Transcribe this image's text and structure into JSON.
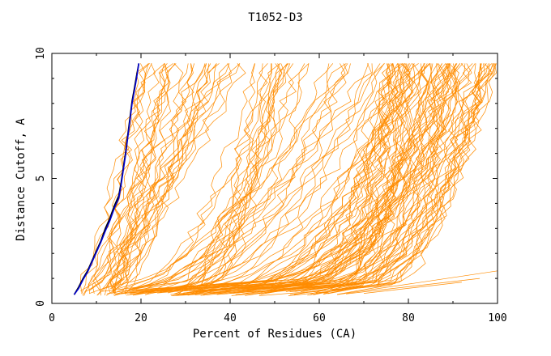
{
  "chart_data": {
    "type": "line",
    "title": "T1052-D3",
    "xlabel": "Percent of Residues (CA)",
    "ylabel": "Distance Cutoff, A",
    "xlim": [
      0,
      100
    ],
    "ylim": [
      0,
      10
    ],
    "x_ticks": [
      "0",
      "20",
      "40",
      "60",
      "80",
      "100"
    ],
    "y_ticks": [
      "0",
      "5",
      "10"
    ],
    "grid": false,
    "colors": {
      "models": "#ff8c00",
      "reference_black": "#000000",
      "reference_blue": "#0000cd"
    },
    "reference_series": [
      {
        "color": "black",
        "x": [
          5,
          6,
          7,
          8,
          9,
          10,
          11,
          12,
          13,
          14,
          15,
          15.5,
          16,
          16.5,
          17,
          17.5,
          18,
          18.5,
          19,
          19.5
        ],
        "y": [
          0.35,
          0.65,
          1.0,
          1.3,
          1.7,
          2.1,
          2.5,
          3.0,
          3.4,
          3.9,
          4.3,
          4.8,
          5.4,
          6.0,
          6.7,
          7.4,
          8.1,
          8.6,
          9.1,
          9.6
        ]
      },
      {
        "color": "blue",
        "x": [
          5,
          6,
          7,
          8,
          9,
          10,
          11,
          12,
          13,
          14,
          15,
          15.5,
          16,
          16.5,
          17,
          17.5,
          18,
          18.5,
          19,
          19.5
        ],
        "y": [
          0.35,
          0.6,
          0.95,
          1.25,
          1.65,
          2.05,
          2.45,
          2.9,
          3.3,
          3.8,
          4.2,
          4.7,
          5.3,
          5.9,
          6.6,
          7.3,
          8.0,
          8.5,
          9.0,
          9.6
        ]
      }
    ],
    "model_series_count": 150
  }
}
